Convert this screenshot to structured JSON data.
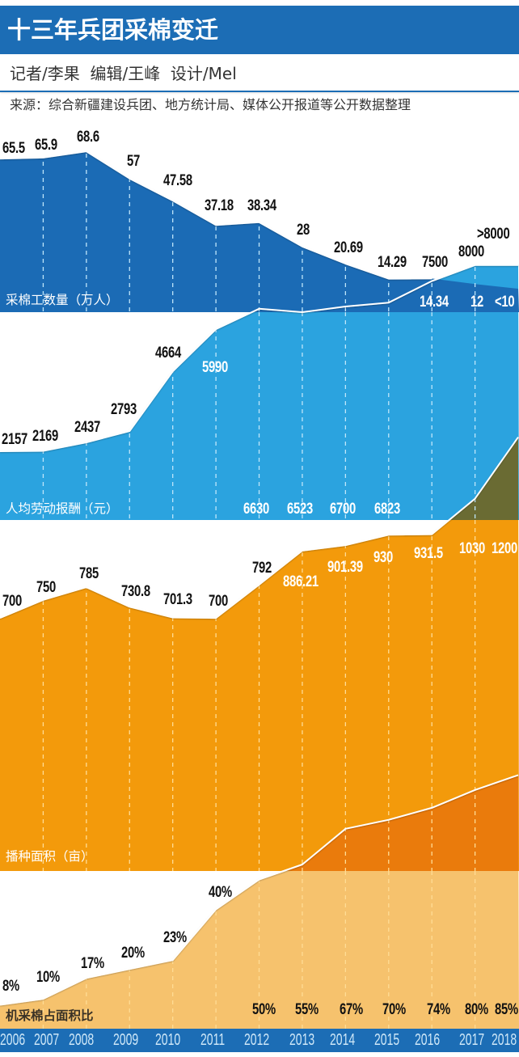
{
  "header": {
    "title": "十三年兵团采棉变迁",
    "credits": "记者/李果  编辑/王峰  设计/Mel",
    "source": "来源：综合新疆建设兵团、地方统计局、媒体公开报道等公开数据整理"
  },
  "colors": {
    "header_blue": "#1c6db5",
    "workers": "#1b6bb5",
    "salary": "#2ba3df",
    "area": "#f39a0b",
    "area_overlap": "#6a6b33",
    "machine": "#f6c26d",
    "machine_overlap": "#ea7b0c",
    "line": "#ffffff",
    "dash_blue": "#bfe6fa",
    "dash_orange": "#ffdc95"
  },
  "axis": {
    "years": [
      "2006",
      "2007",
      "2008",
      "2009",
      "2010",
      "2011",
      "2012",
      "2013",
      "2014",
      "2015",
      "2016",
      "2017",
      "2018"
    ]
  },
  "chart_data": [
    {
      "type": "area",
      "title": "采棉工数量（万人）",
      "categories": [
        "2006",
        "2007",
        "2008",
        "2009",
        "2010",
        "2011",
        "2012",
        "2013",
        "2014",
        "2015",
        "2016",
        "2017",
        "2018"
      ],
      "values": [
        65.5,
        65.9,
        68.6,
        57,
        47.58,
        37.18,
        38.34,
        28,
        20.69,
        14.29,
        14.34,
        12,
        10
      ],
      "labels": [
        "65.5",
        "65.9",
        "68.6",
        "57",
        "47.58",
        "37.18",
        "38.34",
        "28",
        "20.69",
        "14.29",
        "14.34",
        "12",
        "<10"
      ],
      "ylabel": "万人"
    },
    {
      "type": "area",
      "title": "人均劳动报酬（元）",
      "categories": [
        "2006",
        "2007",
        "2008",
        "2009",
        "2010",
        "2011",
        "2012",
        "2013",
        "2014",
        "2015",
        "2016",
        "2017",
        "2018"
      ],
      "values": [
        2157,
        2169,
        2437,
        2793,
        4664,
        5990,
        6630,
        6523,
        6700,
        6823,
        7500,
        8000,
        8000
      ],
      "labels": [
        "2157",
        "2169",
        "2437",
        "2793",
        "4664",
        "5990",
        "6630",
        "6523",
        "6700",
        "6823",
        "7500",
        "8000",
        ">8000"
      ],
      "ylabel": "元"
    },
    {
      "type": "area",
      "title": "播种面积（亩）",
      "categories": [
        "2006",
        "2007",
        "2008",
        "2009",
        "2010",
        "2011",
        "2012",
        "2013",
        "2014",
        "2015",
        "2016",
        "2017",
        "2018"
      ],
      "values": [
        700,
        750,
        785,
        730.8,
        701.3,
        700,
        792,
        886.21,
        901.39,
        930,
        931.5,
        1030,
        1200
      ],
      "labels": [
        "700",
        "750",
        "785",
        "730.8",
        "701.3",
        "700",
        "792",
        "886.21",
        "901.39",
        "930",
        "931.5",
        "1030",
        "1200"
      ],
      "ylabel": "亩"
    },
    {
      "type": "area",
      "title": "机采棉占面积比",
      "categories": [
        "2006",
        "2007",
        "2008",
        "2009",
        "2010",
        "2011",
        "2012",
        "2013",
        "2014",
        "2015",
        "2016",
        "2017",
        "2018"
      ],
      "values": [
        8,
        10,
        17,
        20,
        23,
        40,
        50,
        55,
        67,
        70,
        74,
        80,
        85
      ],
      "labels": [
        "8%",
        "10%",
        "17%",
        "20%",
        "23%",
        "40%",
        "50%",
        "55%",
        "67%",
        "70%",
        "74%",
        "80%",
        "85%"
      ],
      "ylabel": "%"
    }
  ]
}
